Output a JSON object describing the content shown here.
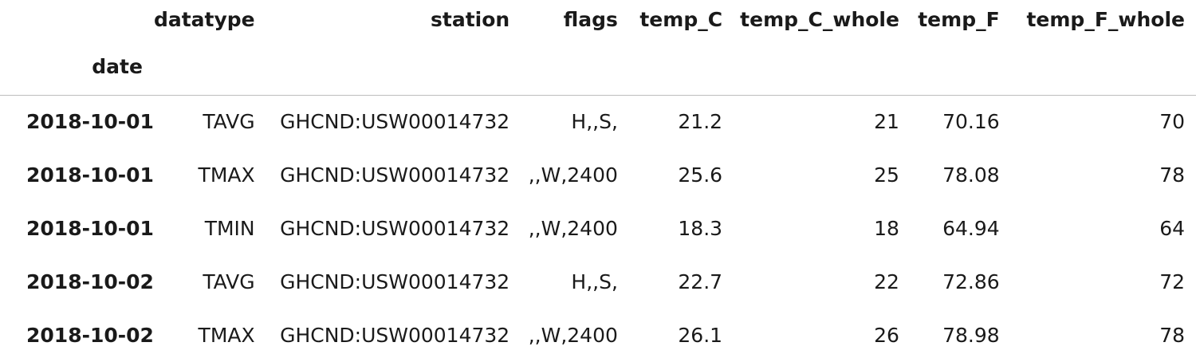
{
  "table": {
    "columns": [
      "datatype",
      "station",
      "flags",
      "temp_C",
      "temp_C_whole",
      "temp_F",
      "temp_F_whole"
    ],
    "index_name": "date",
    "rows": [
      {
        "date": "2018-10-01",
        "datatype": "TAVG",
        "station": "GHCND:USW00014732",
        "flags": "H,,S,",
        "temp_C": "21.2",
        "temp_C_whole": "21",
        "temp_F": "70.16",
        "temp_F_whole": "70"
      },
      {
        "date": "2018-10-01",
        "datatype": "TMAX",
        "station": "GHCND:USW00014732",
        "flags": ",,W,2400",
        "temp_C": "25.6",
        "temp_C_whole": "25",
        "temp_F": "78.08",
        "temp_F_whole": "78"
      },
      {
        "date": "2018-10-01",
        "datatype": "TMIN",
        "station": "GHCND:USW00014732",
        "flags": ",,W,2400",
        "temp_C": "18.3",
        "temp_C_whole": "18",
        "temp_F": "64.94",
        "temp_F_whole": "64"
      },
      {
        "date": "2018-10-02",
        "datatype": "TAVG",
        "station": "GHCND:USW00014732",
        "flags": "H,,S,",
        "temp_C": "22.7",
        "temp_C_whole": "22",
        "temp_F": "72.86",
        "temp_F_whole": "72"
      },
      {
        "date": "2018-10-02",
        "datatype": "TMAX",
        "station": "GHCND:USW00014732",
        "flags": ",,W,2400",
        "temp_C": "26.1",
        "temp_C_whole": "26",
        "temp_F": "78.98",
        "temp_F_whole": "78"
      }
    ]
  }
}
